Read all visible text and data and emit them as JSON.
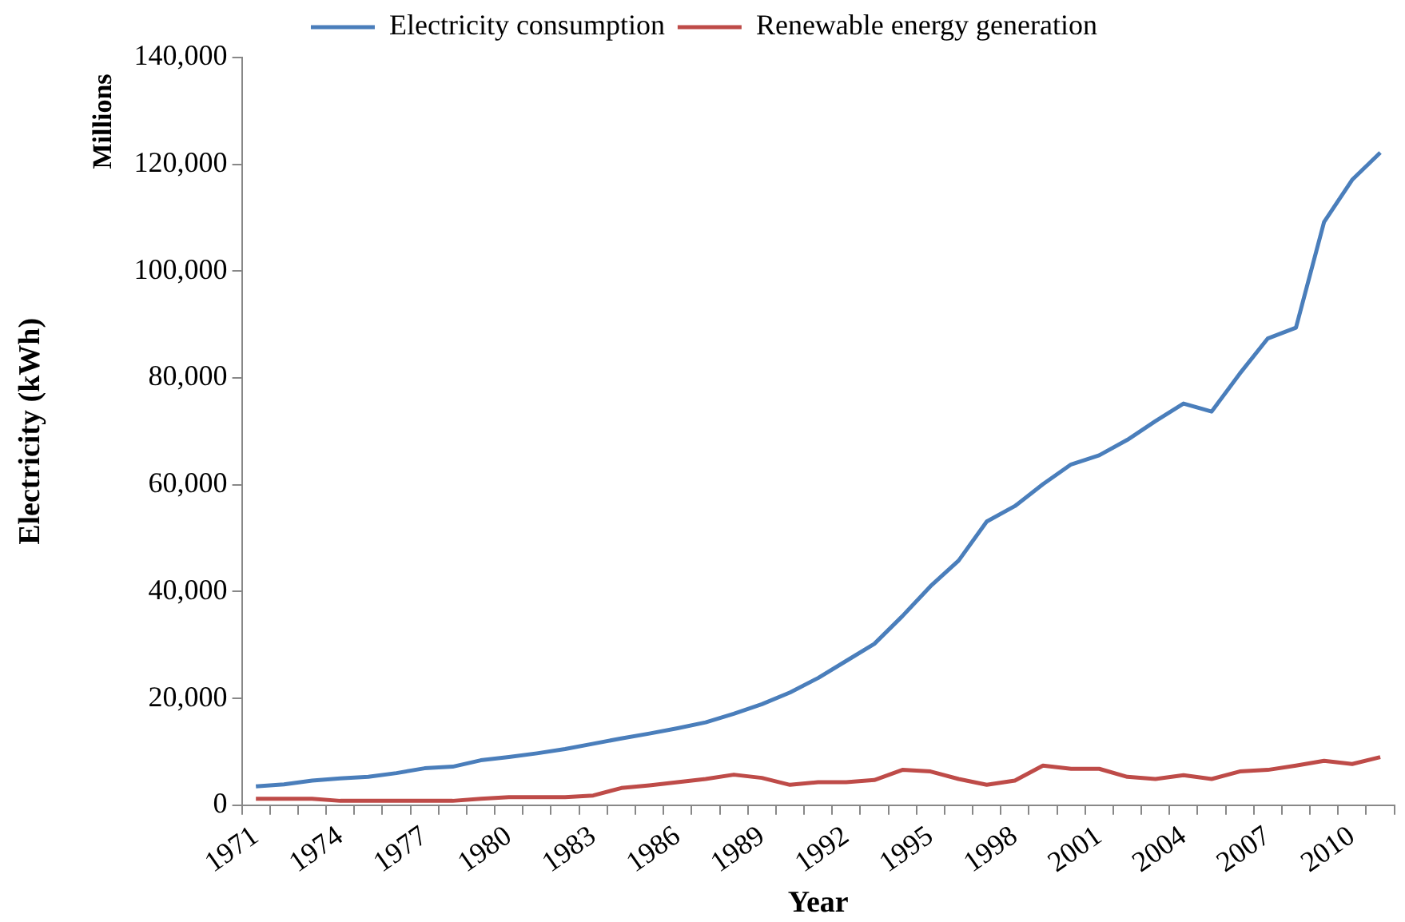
{
  "chart_data": {
    "type": "line",
    "xlabel": "Year",
    "ylabel": "Electricity (kWh)",
    "annotations": [
      "Millions"
    ],
    "categories": [
      "1971",
      null,
      null,
      "1974",
      null,
      null,
      "1977",
      null,
      null,
      "1980",
      null,
      null,
      "1983",
      null,
      null,
      "1986",
      null,
      null,
      "1989",
      null,
      null,
      "1992",
      null,
      null,
      "1995",
      null,
      null,
      "1998",
      null,
      null,
      "2001",
      null,
      null,
      "2004",
      null,
      null,
      "2007",
      null,
      null,
      "2010",
      null
    ],
    "series": [
      {
        "name": "Electricity consumption",
        "color": "#4a7ebb",
        "values": [
          3500,
          3900,
          4600,
          5000,
          5300,
          6000,
          6900,
          7200,
          8400,
          9000,
          9700,
          10500,
          11500,
          12500,
          13400,
          14400,
          15500,
          17100,
          18900,
          21100,
          23800,
          27000,
          30200,
          35400,
          41000,
          45800,
          53100,
          56000,
          60100,
          63800,
          65500,
          68400,
          71900,
          75200,
          73700,
          80800,
          87400,
          89400,
          109200,
          117100,
          122200
        ]
      },
      {
        "name": "Renewable energy generation",
        "color": "#be4b48",
        "values": [
          1200,
          1200,
          1200,
          800,
          800,
          800,
          800,
          800,
          1200,
          1500,
          1500,
          1500,
          1800,
          3200,
          3700,
          4300,
          4900,
          5700,
          5100,
          3800,
          4300,
          4300,
          4700,
          6600,
          6300,
          4900,
          3800,
          4600,
          7400,
          6800,
          6800,
          5300,
          4900,
          5600,
          4900,
          6300,
          6600,
          7400,
          8300,
          7700,
          9000
        ]
      }
    ],
    "ylim": [
      0,
      140000
    ],
    "yticks": [
      0,
      {
        "value": 20000,
        "label": "20,000"
      },
      {
        "value": 40000,
        "label": "40,000"
      },
      {
        "value": 60000,
        "label": "60,000"
      },
      {
        "value": 80000,
        "label": "80,000"
      },
      {
        "value": 100000,
        "label": "100,000"
      },
      {
        "value": 120000,
        "label": "120,000"
      },
      {
        "value": 140000,
        "label": "140,000"
      }
    ],
    "legend": "top",
    "marker": "none",
    "line_style": "solid"
  }
}
